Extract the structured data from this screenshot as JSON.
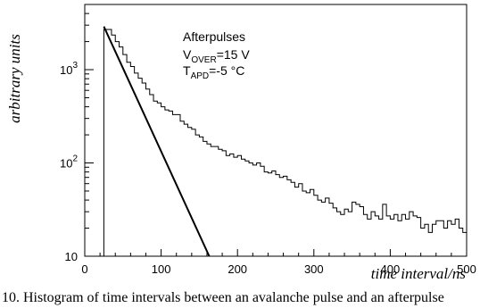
{
  "chart_data": {
    "type": "histogram",
    "xlabel": "time interval/ns",
    "ylabel": "arbitrary units",
    "x_ticks": [
      {
        "value": 0,
        "label": "0"
      },
      {
        "value": 100,
        "label": "100"
      },
      {
        "value": 200,
        "label": "200"
      },
      {
        "value": 300,
        "label": "300"
      },
      {
        "value": 400,
        "label": "400"
      },
      {
        "value": 500,
        "label": "500"
      }
    ],
    "y_ticks": [
      {
        "value": 10,
        "base": "10",
        "exp": ""
      },
      {
        "value": 100,
        "base": "10",
        "exp": "2"
      },
      {
        "value": 1000,
        "base": "10",
        "exp": "3"
      }
    ],
    "xlim": [
      0,
      500
    ],
    "ylim": [
      10,
      5000
    ],
    "y_scale": "log",
    "annotation": {
      "title": "Afterpulses",
      "line1_main": "V",
      "line1_sub": "OVER",
      "line1_value": "=15 V",
      "line2_main": "T",
      "line2_sub": "APD",
      "line2_value": "=-5 °C"
    },
    "histogram": {
      "bin_width": 5,
      "bins": [
        {
          "x": 25,
          "y": 2700
        },
        {
          "x": 30,
          "y": 2700
        },
        {
          "x": 35,
          "y": 2350
        },
        {
          "x": 40,
          "y": 2000
        },
        {
          "x": 45,
          "y": 1750
        },
        {
          "x": 50,
          "y": 1450
        },
        {
          "x": 55,
          "y": 1200
        },
        {
          "x": 60,
          "y": 1080
        },
        {
          "x": 65,
          "y": 920
        },
        {
          "x": 70,
          "y": 810
        },
        {
          "x": 75,
          "y": 720
        },
        {
          "x": 80,
          "y": 620
        },
        {
          "x": 85,
          "y": 540
        },
        {
          "x": 90,
          "y": 460
        },
        {
          "x": 95,
          "y": 440
        },
        {
          "x": 100,
          "y": 400
        },
        {
          "x": 105,
          "y": 370
        },
        {
          "x": 110,
          "y": 360
        },
        {
          "x": 115,
          "y": 330
        },
        {
          "x": 120,
          "y": 330
        },
        {
          "x": 125,
          "y": 280
        },
        {
          "x": 130,
          "y": 260
        },
        {
          "x": 135,
          "y": 240
        },
        {
          "x": 140,
          "y": 230
        },
        {
          "x": 145,
          "y": 200
        },
        {
          "x": 150,
          "y": 190
        },
        {
          "x": 155,
          "y": 170
        },
        {
          "x": 160,
          "y": 160
        },
        {
          "x": 165,
          "y": 150
        },
        {
          "x": 170,
          "y": 150
        },
        {
          "x": 175,
          "y": 140
        },
        {
          "x": 180,
          "y": 135
        },
        {
          "x": 185,
          "y": 120
        },
        {
          "x": 190,
          "y": 125
        },
        {
          "x": 195,
          "y": 115
        },
        {
          "x": 200,
          "y": 120
        },
        {
          "x": 205,
          "y": 110
        },
        {
          "x": 210,
          "y": 105
        },
        {
          "x": 215,
          "y": 100
        },
        {
          "x": 220,
          "y": 95
        },
        {
          "x": 225,
          "y": 100
        },
        {
          "x": 230,
          "y": 92
        },
        {
          "x": 235,
          "y": 80
        },
        {
          "x": 240,
          "y": 78
        },
        {
          "x": 245,
          "y": 82
        },
        {
          "x": 250,
          "y": 75
        },
        {
          "x": 255,
          "y": 70
        },
        {
          "x": 260,
          "y": 72
        },
        {
          "x": 265,
          "y": 66
        },
        {
          "x": 270,
          "y": 62
        },
        {
          "x": 275,
          "y": 55
        },
        {
          "x": 280,
          "y": 60
        },
        {
          "x": 285,
          "y": 50
        },
        {
          "x": 290,
          "y": 48
        },
        {
          "x": 295,
          "y": 52
        },
        {
          "x": 300,
          "y": 45
        },
        {
          "x": 305,
          "y": 40
        },
        {
          "x": 310,
          "y": 38
        },
        {
          "x": 315,
          "y": 42
        },
        {
          "x": 320,
          "y": 37
        },
        {
          "x": 325,
          "y": 33
        },
        {
          "x": 330,
          "y": 30
        },
        {
          "x": 335,
          "y": 28
        },
        {
          "x": 340,
          "y": 32
        },
        {
          "x": 345,
          "y": 30
        },
        {
          "x": 350,
          "y": 38
        },
        {
          "x": 355,
          "y": 36
        },
        {
          "x": 360,
          "y": 34
        },
        {
          "x": 365,
          "y": 28
        },
        {
          "x": 370,
          "y": 25
        },
        {
          "x": 375,
          "y": 30
        },
        {
          "x": 380,
          "y": 27
        },
        {
          "x": 385,
          "y": 25
        },
        {
          "x": 390,
          "y": 36
        },
        {
          "x": 395,
          "y": 27
        },
        {
          "x": 400,
          "y": 25
        },
        {
          "x": 405,
          "y": 28
        },
        {
          "x": 410,
          "y": 24
        },
        {
          "x": 415,
          "y": 28
        },
        {
          "x": 420,
          "y": 25
        },
        {
          "x": 425,
          "y": 30
        },
        {
          "x": 430,
          "y": 27
        },
        {
          "x": 435,
          "y": 26
        },
        {
          "x": 440,
          "y": 20
        },
        {
          "x": 445,
          "y": 22
        },
        {
          "x": 450,
          "y": 18
        },
        {
          "x": 455,
          "y": 22
        },
        {
          "x": 460,
          "y": 24
        },
        {
          "x": 465,
          "y": 24
        },
        {
          "x": 470,
          "y": 20
        },
        {
          "x": 475,
          "y": 24
        },
        {
          "x": 480,
          "y": 22
        },
        {
          "x": 485,
          "y": 25
        },
        {
          "x": 490,
          "y": 20
        },
        {
          "x": 495,
          "y": 18
        }
      ]
    },
    "fit_line": {
      "x": [
        25,
        163
      ],
      "y": [
        2900,
        10
      ]
    },
    "colors": {
      "line": "#000000",
      "background": "#ffffff"
    }
  },
  "caption": "10. Histogram of time intervals between an avalanche pulse and an afterpulse"
}
